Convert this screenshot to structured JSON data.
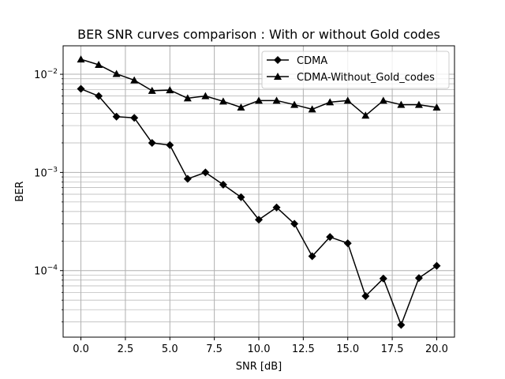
{
  "chart_data": {
    "type": "line",
    "title": "BER SNR curves comparison : With or without Gold codes",
    "xlabel": "SNR [dB]",
    "ylabel": "BER",
    "xscale": "linear",
    "yscale": "log",
    "xlim": [
      -1.0,
      21.0
    ],
    "ylim": [
      2.1e-05,
      0.0195
    ],
    "grid": true,
    "grid_minor": true,
    "legend_position": "top-right",
    "x_ticks": [
      0.0,
      2.5,
      5.0,
      7.5,
      10.0,
      12.5,
      15.0,
      17.5,
      20.0
    ],
    "x_tick_labels": [
      "0.0",
      "2.5",
      "5.0",
      "7.5",
      "10.0",
      "12.5",
      "15.0",
      "17.5",
      "20.0"
    ],
    "y_ticks": [
      0.0001,
      0.001,
      0.01
    ],
    "y_tick_labels": [
      "10",
      "10",
      "10"
    ],
    "y_tick_exponents": [
      "−4",
      "−3",
      "−2"
    ],
    "line_color": "#000000",
    "grid_color": "#b0b0b0",
    "x": [
      0,
      1,
      2,
      3,
      4,
      5,
      6,
      7,
      8,
      9,
      10,
      11,
      12,
      13,
      14,
      15,
      16,
      17,
      18,
      19,
      20
    ],
    "series": [
      {
        "name": "CDMA",
        "marker": "diamond",
        "values": [
          0.0071,
          0.006,
          0.0037,
          0.0036,
          0.002,
          0.0019,
          0.00086,
          0.001,
          0.00075,
          0.00056,
          0.00033,
          0.00044,
          0.0003,
          0.00014,
          0.00022,
          0.00019,
          5.5e-05,
          8.3e-05,
          2.8e-05,
          8.4e-05,
          0.000112
        ]
      },
      {
        "name": "CDMA-Without_Gold_codes",
        "marker": "triangle",
        "values": [
          0.0142,
          0.0125,
          0.0101,
          0.0087,
          0.0068,
          0.0069,
          0.0057,
          0.006,
          0.0053,
          0.0046,
          0.0054,
          0.0054,
          0.0049,
          0.0044,
          0.0052,
          0.0054,
          0.0038,
          0.0054,
          0.0049,
          0.0049,
          0.0046
        ]
      }
    ]
  }
}
